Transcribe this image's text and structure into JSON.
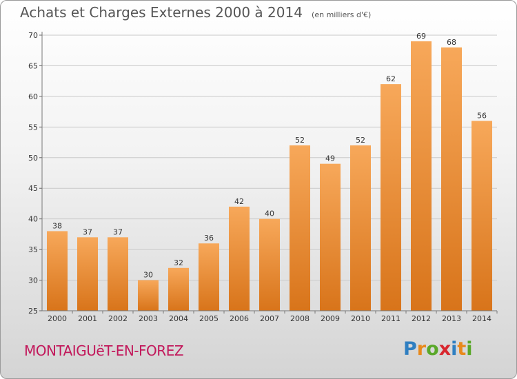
{
  "title": "Achats et Charges Externes 2000 à 2014",
  "subtitle": "(en milliers d'€)",
  "location": "MONTAIGUëT-EN-FOREZ",
  "logo": {
    "text": "Proxiti",
    "letter_colors": [
      "#2f7fc1",
      "#e8891b",
      "#5aa82a",
      "#d8262e",
      "#2f7fc1",
      "#e8891b",
      "#5aa82a"
    ]
  },
  "colors": {
    "bar_top": "#f7a85a",
    "bar_bottom": "#d8741a",
    "grid": "#c9c9c9",
    "axis_text": "#333333",
    "location": "#c2185b"
  },
  "chart_data": {
    "type": "bar",
    "categories": [
      "2000",
      "2001",
      "2002",
      "2003",
      "2004",
      "2005",
      "2006",
      "2007",
      "2008",
      "2009",
      "2010",
      "2011",
      "2012",
      "2013",
      "2014"
    ],
    "values": [
      38,
      37,
      37,
      30,
      32,
      36,
      42,
      40,
      52,
      49,
      52,
      62,
      69,
      68,
      56
    ],
    "yticks": [
      25,
      30,
      35,
      40,
      45,
      50,
      55,
      60,
      65,
      70
    ],
    "ylim": [
      25,
      70
    ],
    "grid": true,
    "data_labels": true,
    "title": "Achats et Charges Externes 2000 à 2014",
    "subtitle": "(en milliers d'€)",
    "xlabel": "",
    "ylabel": ""
  }
}
